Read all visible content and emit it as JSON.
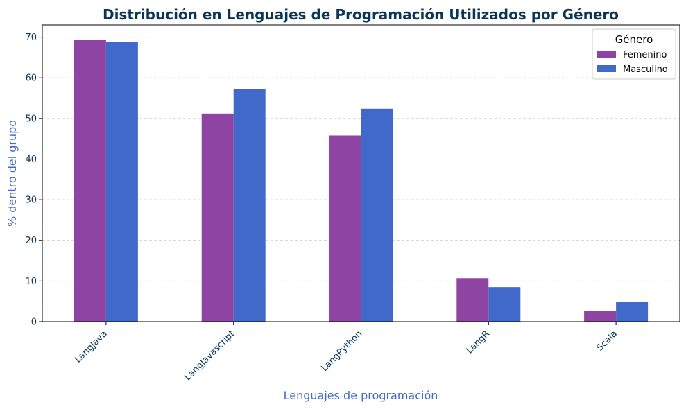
{
  "chart_data": {
    "type": "bar",
    "title": "Distribución en Lenguajes de Programación Utilizados por Género",
    "xlabel": "Lenguajes de programación",
    "ylabel": "% dentro del grupo",
    "categories": [
      "LangJava",
      "LangJavascript",
      "LangPython",
      "LangR",
      "Scala"
    ],
    "series": [
      {
        "name": "Femenino",
        "color": "#8e44a3",
        "values": [
          69.4,
          51.2,
          45.8,
          10.7,
          2.7
        ]
      },
      {
        "name": "Masculino",
        "color": "#4169c9",
        "values": [
          68.8,
          57.2,
          52.4,
          8.5,
          4.8
        ]
      }
    ],
    "ylim": [
      0,
      73
    ],
    "yticks": [
      0,
      10,
      20,
      30,
      40,
      50,
      60,
      70
    ],
    "grid": true,
    "legend": {
      "title": "Género",
      "placement": "top-right"
    }
  }
}
